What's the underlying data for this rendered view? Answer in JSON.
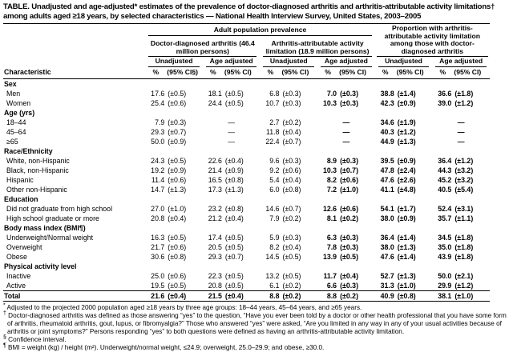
{
  "title": "TABLE. Unadjusted and age-adjusted* estimates of the prevalence of doctor-diagnosed arthritis and arthritis-attributable activity limitations† among adults aged ≥18 years, by selected characteristics — National Health Interview Survey, United States, 2003–2005",
  "table": {
    "header": {
      "characteristic": "Characteristic",
      "group_population": "Adult population prevalence",
      "group_proportion": "Proportion with arthritis-attributable activity limitation among those with doctor-diagnosed arthritis",
      "sub_doctor": "Doctor-diagnosed arthritis (46.4 million persons)",
      "sub_limitation": "Arthritis-attributable activity limitation (18.9 million persons)",
      "unadjusted": "Unadjusted",
      "age_adjusted": "Age adjusted",
      "pct": "%",
      "ci": "(95% CI)",
      "ci_first": "(95% CI§)"
    },
    "sections": [
      {
        "label": "Sex",
        "rows": [
          {
            "label": "Men",
            "pairs": [
              [
                "17.6",
                "(±0.5)"
              ],
              [
                "18.1",
                "(±0.5)"
              ],
              [
                "6.8",
                "(±0.3)"
              ],
              [
                "7.0",
                "(±0.3)"
              ],
              [
                "38.8",
                "(±1.4)"
              ],
              [
                "36.6",
                "(±1.8)"
              ]
            ]
          },
          {
            "label": "Women",
            "pairs": [
              [
                "25.4",
                "(±0.6)"
              ],
              [
                "24.4",
                "(±0.5)"
              ],
              [
                "10.7",
                "(±0.3)"
              ],
              [
                "10.3",
                "(±0.3)"
              ],
              [
                "42.3",
                "(±0.9)"
              ],
              [
                "39.0",
                "(±1.2)"
              ]
            ]
          }
        ]
      },
      {
        "label": "Age (yrs)",
        "rows": [
          {
            "label": "18–44",
            "pairs": [
              [
                "7.9",
                "(±0.3)"
              ],
              "—",
              [
                "2.7",
                "(±0.2)"
              ],
              "—",
              [
                "34.6",
                "(±1.9)"
              ],
              "—"
            ]
          },
          {
            "label": "45–64",
            "pairs": [
              [
                "29.3",
                "(±0.7)"
              ],
              "—",
              [
                "11.8",
                "(±0.4)"
              ],
              "—",
              [
                "40.3",
                "(±1.2)"
              ],
              "—"
            ]
          },
          {
            "label": "≥65",
            "pairs": [
              [
                "50.0",
                "(±0.9)"
              ],
              "—",
              [
                "22.4",
                "(±0.7)"
              ],
              "—",
              [
                "44.9",
                "(±1.3)"
              ],
              "—"
            ]
          }
        ]
      },
      {
        "label": "Race/Ethnicity",
        "rows": [
          {
            "label": "White, non-Hispanic",
            "pairs": [
              [
                "24.3",
                "(±0.5)"
              ],
              [
                "22.6",
                "(±0.4)"
              ],
              [
                "9.6",
                "(±0.3)"
              ],
              [
                "8.9",
                "(±0.3)"
              ],
              [
                "39.5",
                "(±0.9)"
              ],
              [
                "36.4",
                "(±1.2)"
              ]
            ]
          },
          {
            "label": "Black, non-Hispanic",
            "pairs": [
              [
                "19.2",
                "(±0.9)"
              ],
              [
                "21.4",
                "(±0.9)"
              ],
              [
                "9.2",
                "(±0.6)"
              ],
              [
                "10.3",
                "(±0.7)"
              ],
              [
                "47.8",
                "(±2.4)"
              ],
              [
                "44.3",
                "(±3.2)"
              ]
            ]
          },
          {
            "label": "Hispanic",
            "pairs": [
              [
                "11.4",
                "(±0.6)"
              ],
              [
                "16.5",
                "(±0.8)"
              ],
              [
                "5.4",
                "(±0.4)"
              ],
              [
                "8.2",
                "(±0.6)"
              ],
              [
                "47.6",
                "(±2.6)"
              ],
              [
                "45.2",
                "(±3.2)"
              ]
            ]
          },
          {
            "label": "Other non-Hispanic",
            "pairs": [
              [
                "14.7",
                "(±1.3)"
              ],
              [
                "17.3",
                "(±1.3)"
              ],
              [
                "6.0",
                "(±0.8)"
              ],
              [
                "7.2",
                "(±1.0)"
              ],
              [
                "41.1",
                "(±4.8)"
              ],
              [
                "40.5",
                "(±5.4)"
              ]
            ]
          }
        ]
      },
      {
        "label": "Education",
        "rows": [
          {
            "label": "Did not graduate from high school",
            "pairs": [
              [
                "27.0",
                "(±1.0)"
              ],
              [
                "23.2",
                "(±0.8)"
              ],
              [
                "14.6",
                "(±0.7)"
              ],
              [
                "12.6",
                "(±0.6)"
              ],
              [
                "54.1",
                "(±1.7)"
              ],
              [
                "52.4",
                "(±3.1)"
              ]
            ]
          },
          {
            "label": "High school graduate or more",
            "pairs": [
              [
                "20.8",
                "(±0.4)"
              ],
              [
                "21.2",
                "(±0.4)"
              ],
              [
                "7.9",
                "(±0.2)"
              ],
              [
                "8.1",
                "(±0.2)"
              ],
              [
                "38.0",
                "(±0.9)"
              ],
              [
                "35.7",
                "(±1.1)"
              ]
            ]
          }
        ]
      },
      {
        "label": "Body mass index (BMI¶)",
        "rows": [
          {
            "label": "Underweight/Normal weight",
            "pairs": [
              [
                "16.3",
                "(±0.5)"
              ],
              [
                "17.4",
                "(±0.5)"
              ],
              [
                "5.9",
                "(±0.3)"
              ],
              [
                "6.3",
                "(±0.3)"
              ],
              [
                "36.4",
                "(±1.4)"
              ],
              [
                "34.5",
                "(±1.8)"
              ]
            ]
          },
          {
            "label": "Overweight",
            "pairs": [
              [
                "21.7",
                "(±0.6)"
              ],
              [
                "20.5",
                "(±0.5)"
              ],
              [
                "8.2",
                "(±0.4)"
              ],
              [
                "7.8",
                "(±0.3)"
              ],
              [
                "38.0",
                "(±1.3)"
              ],
              [
                "35.0",
                "(±1.8)"
              ]
            ]
          },
          {
            "label": "Obese",
            "pairs": [
              [
                "30.6",
                "(±0.8)"
              ],
              [
                "29.3",
                "(±0.7)"
              ],
              [
                "14.5",
                "(±0.5)"
              ],
              [
                "13.9",
                "(±0.5)"
              ],
              [
                "47.6",
                "(±1.4)"
              ],
              [
                "43.9",
                "(±1.8)"
              ]
            ]
          }
        ]
      },
      {
        "label": "Physical activity level",
        "rows": [
          {
            "label": "Inactive",
            "pairs": [
              [
                "25.0",
                "(±0.6)"
              ],
              [
                "22.3",
                "(±0.5)"
              ],
              [
                "13.2",
                "(±0.5)"
              ],
              [
                "11.7",
                "(±0.4)"
              ],
              [
                "52.7",
                "(±1.3)"
              ],
              [
                "50.0",
                "(±2.1)"
              ]
            ]
          },
          {
            "label": "Active",
            "pairs": [
              [
                "19.5",
                "(±0.5)"
              ],
              [
                "20.8",
                "(±0.5)"
              ],
              [
                "6.1",
                "(±0.2)"
              ],
              [
                "6.6",
                "(±0.3)"
              ],
              [
                "31.3",
                "(±1.0)"
              ],
              [
                "29.9",
                "(±1.2)"
              ]
            ]
          }
        ]
      }
    ],
    "total": {
      "label": "Total",
      "pairs": [
        [
          "21.6",
          "(±0.4)"
        ],
        [
          "21.5",
          "(±0.4)"
        ],
        [
          "8.8",
          "(±0.2)"
        ],
        [
          "8.8",
          "(±0.2)"
        ],
        [
          "40.9",
          "(±0.8)"
        ],
        [
          "38.1",
          "(±1.0)"
        ]
      ]
    }
  },
  "footnotes": [
    {
      "marker": "*",
      "text": "Adjusted to the projected 2000 population aged ≥18 years by three age groups: 18–44 years, 45–64 years, and ≥65 years."
    },
    {
      "marker": "†",
      "text": "Doctor-diagnosed arthritis was defined as those answering “yes” to the question, “Have you ever been told by a doctor or other health professional that you have some form of arthritis, rheumatoid arthritis, gout, lupus, or fibromyalgia?” Those who answered “yes” were asked, “Are you limited in any way in any of your usual activities because of arthritis or joint symptoms?” Persons responding “yes” to both questions were defined as having an arthritis-attributable activity limitation."
    },
    {
      "marker": "§",
      "text": "Confidence interval."
    },
    {
      "marker": "¶",
      "text": "BMI = weight (kg) / height (m²). Underweight/normal weight, ≤24.9; overweight, 25.0–29.9; and obese, ≥30.0."
    }
  ]
}
